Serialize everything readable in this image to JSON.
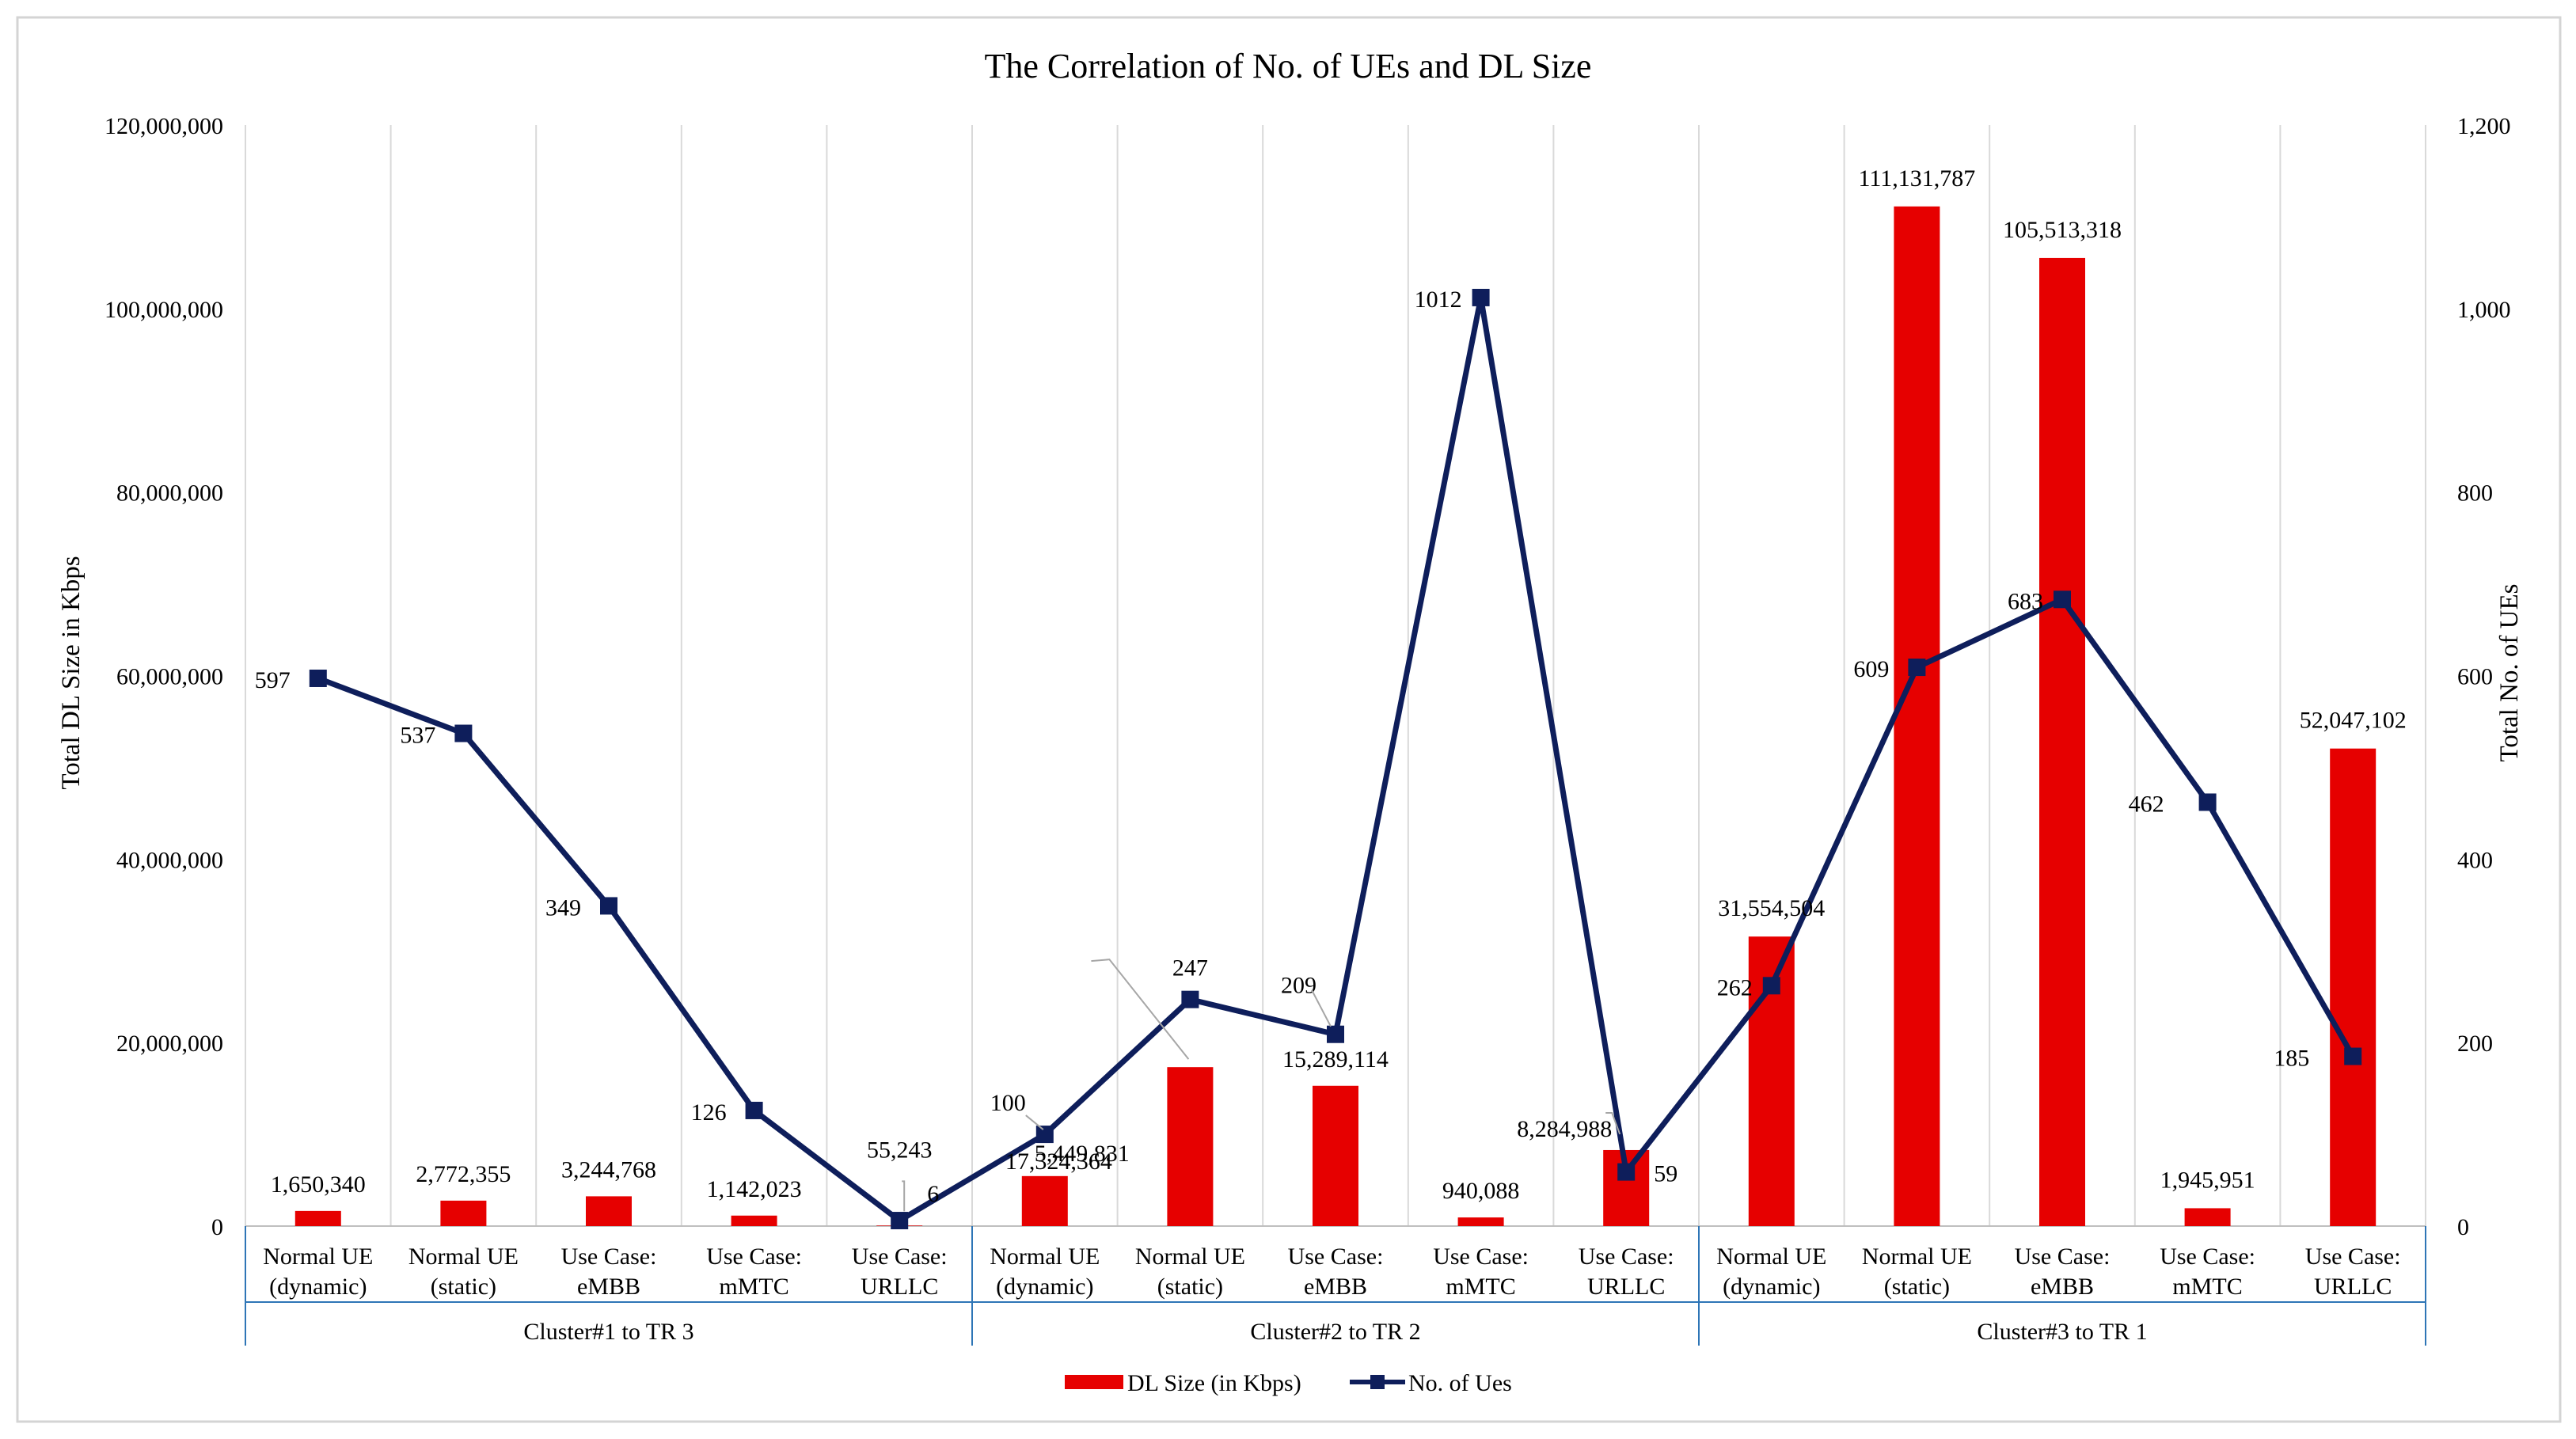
{
  "chart_data": {
    "type": "bar+line",
    "title": "The Correlation  of No. of UEs and DL Size",
    "ylabel_left": "Total DL Size in Kbps",
    "ylabel_right": "Total No. of UEs",
    "ylim_left": [
      0,
      120000000
    ],
    "ylim_right": [
      0,
      1200
    ],
    "yticks_left": [
      "0",
      "20,000,000",
      "40,000,000",
      "60,000,000",
      "80,000,000",
      "100,000,000",
      "120,000,000"
    ],
    "yticks_right": [
      "0",
      "200",
      "400",
      "600",
      "800",
      "1,000",
      "1,200"
    ],
    "categories": [
      {
        "line1": "Normal UE",
        "line2": "(dynamic)"
      },
      {
        "line1": "Normal UE",
        "line2": "(static)"
      },
      {
        "line1": "Use Case:",
        "line2": "eMBB"
      },
      {
        "line1": "Use Case:",
        "line2": "mMTC"
      },
      {
        "line1": "Use Case:",
        "line2": "URLLC"
      },
      {
        "line1": "Normal UE",
        "line2": "(dynamic)"
      },
      {
        "line1": "Normal UE",
        "line2": "(static)"
      },
      {
        "line1": "Use Case:",
        "line2": "eMBB"
      },
      {
        "line1": "Use Case:",
        "line2": "mMTC"
      },
      {
        "line1": "Use Case:",
        "line2": "URLLC"
      },
      {
        "line1": "Normal UE",
        "line2": "(dynamic)"
      },
      {
        "line1": "Normal UE",
        "line2": "(static)"
      },
      {
        "line1": "Use Case:",
        "line2": "eMBB"
      },
      {
        "line1": "Use Case:",
        "line2": "mMTC"
      },
      {
        "line1": "Use Case:",
        "line2": "URLLC"
      }
    ],
    "groups": [
      "Cluster#1 to TR 3",
      "Cluster#2 to TR 2",
      "Cluster#3 to TR 1"
    ],
    "series": [
      {
        "name": "DL Size (in Kbps)",
        "type": "bar",
        "axis": "left",
        "color": "#e60000",
        "values": [
          1650340,
          2772355,
          3244768,
          1142023,
          55243,
          5449831,
          17324364,
          15289114,
          940088,
          8284988,
          31554504,
          111131787,
          105513318,
          1945951,
          52047102
        ],
        "labels": [
          "1,650,340",
          "2,772,355",
          "3,244,768",
          "1,142,023",
          "55,243",
          "5,449,831",
          "17,324,364",
          "15,289,114",
          "940,088",
          "8,284,988",
          "31,554,504",
          "111,131,787",
          "105,513,318",
          "1,945,951",
          "52,047,102"
        ]
      },
      {
        "name": "No. of Ues",
        "type": "line",
        "axis": "right",
        "color": "#0e1e5b",
        "values": [
          597,
          537,
          349,
          126,
          6,
          100,
          247,
          209,
          1012,
          59,
          262,
          609,
          683,
          462,
          185
        ],
        "labels": [
          "597",
          "537",
          "349",
          "126",
          "6",
          "100",
          "247",
          "209",
          "1012",
          "59",
          "262",
          "609",
          "683",
          "462",
          "185"
        ]
      }
    ],
    "legend_position": "bottom-center",
    "grid": "vertical"
  }
}
